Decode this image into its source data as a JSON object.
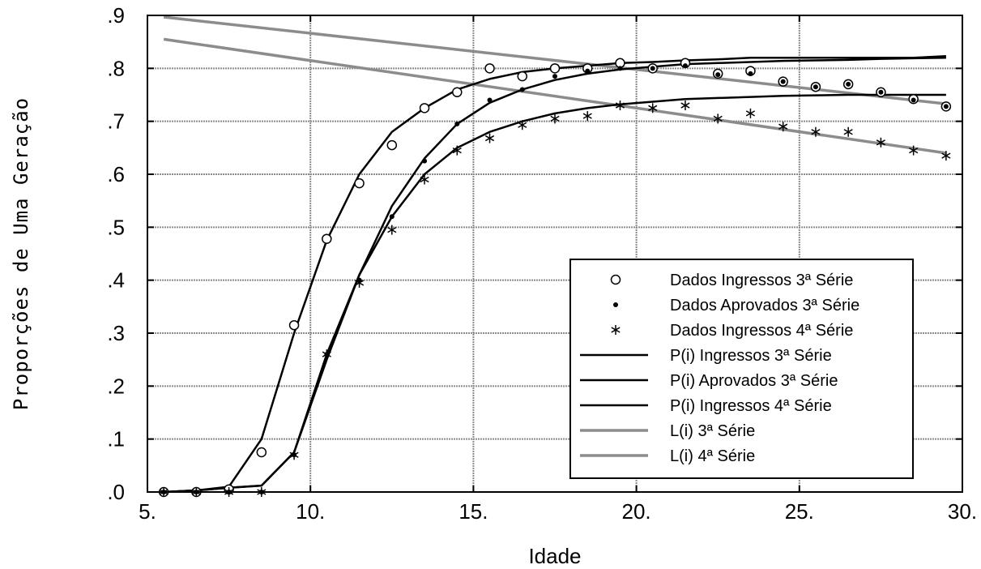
{
  "chart_data": {
    "type": "line",
    "title": "",
    "xlabel": "Idade",
    "ylabel": "Proporções de Uma Geração",
    "xlim": [
      5,
      30
    ],
    "ylim": [
      0,
      0.9
    ],
    "x_ticks": [
      5,
      10,
      15,
      20,
      25,
      30
    ],
    "x_tick_labels": [
      "5.",
      "10.",
      "15.",
      "20.",
      "25.",
      "30."
    ],
    "y_ticks": [
      0,
      0.1,
      0.2,
      0.3,
      0.4,
      0.5,
      0.6,
      0.7,
      0.8,
      0.9
    ],
    "y_tick_labels": [
      ".0",
      ".1",
      ".2",
      ".3",
      ".4",
      ".5",
      ".6",
      ".7",
      ".8",
      ".9"
    ],
    "grid": true,
    "legend_placement": "lower-right",
    "colors": {
      "data": "#000000",
      "model": "#000000",
      "trend": "#8c8c8c",
      "grid": "#8c8c8c"
    },
    "scatter_series": [
      {
        "name": "Dados Ingressos 3ª Série",
        "marker": "circle-open",
        "x": [
          5.5,
          6.5,
          7.5,
          8.5,
          9.5,
          10.5,
          11.5,
          12.5,
          13.5,
          14.5,
          15.5,
          16.5,
          17.5,
          18.5,
          19.5,
          20.5,
          21.5,
          22.5,
          23.5,
          24.5,
          25.5,
          26.5,
          27.5,
          28.5,
          29.5
        ],
        "y": [
          0.0,
          0.0,
          0.005,
          0.075,
          0.315,
          0.478,
          0.583,
          0.655,
          0.725,
          0.755,
          0.8,
          0.785,
          0.8,
          0.8,
          0.81,
          0.8,
          0.81,
          0.79,
          0.795,
          0.775,
          0.765,
          0.77,
          0.755,
          0.742,
          0.728
        ]
      },
      {
        "name": "Dados Aprovados 3ª Série",
        "marker": "dot",
        "x": [
          5.5,
          6.5,
          7.5,
          8.5,
          9.5,
          10.5,
          11.5,
          12.5,
          13.5,
          14.5,
          15.5,
          16.5,
          17.5,
          18.5,
          19.5,
          20.5,
          21.5,
          22.5,
          23.5,
          24.5,
          25.5,
          26.5,
          27.5,
          28.5,
          29.5
        ],
        "y": [
          0.0,
          0.0,
          0.0,
          0.0,
          0.07,
          0.26,
          0.4,
          0.52,
          0.625,
          0.695,
          0.74,
          0.76,
          0.785,
          0.795,
          0.8,
          0.8,
          0.805,
          0.788,
          0.79,
          0.775,
          0.765,
          0.77,
          0.755,
          0.74,
          0.728
        ]
      },
      {
        "name": "Dados Ingressos 4ª Série",
        "marker": "asterisk",
        "x": [
          5.5,
          6.5,
          7.5,
          8.5,
          9.5,
          10.5,
          11.5,
          12.5,
          13.5,
          14.5,
          15.5,
          16.5,
          17.5,
          18.5,
          19.5,
          20.5,
          21.5,
          22.5,
          23.5,
          24.5,
          25.5,
          26.5,
          27.5,
          28.5,
          29.5
        ],
        "y": [
          0.0,
          0.0,
          0.0,
          0.0,
          0.07,
          0.26,
          0.395,
          0.495,
          0.59,
          0.645,
          0.668,
          0.693,
          0.705,
          0.71,
          0.73,
          0.725,
          0.73,
          0.705,
          0.715,
          0.69,
          0.68,
          0.68,
          0.66,
          0.645,
          0.635
        ]
      }
    ],
    "line_series": [
      {
        "name": "P(i) Ingressos 3ª Série",
        "style": "solid-black",
        "x": [
          5.5,
          6.5,
          7.5,
          8.5,
          9.5,
          10.5,
          11.5,
          12.5,
          13.5,
          14.5,
          15.5,
          16.5,
          17.5,
          18.5,
          19.5,
          20.5,
          21.5,
          22.5,
          23.5,
          24.5,
          25.5,
          26.5,
          27.5,
          28.5,
          29.5
        ],
        "y": [
          0.0,
          0.003,
          0.01,
          0.1,
          0.3,
          0.475,
          0.6,
          0.68,
          0.725,
          0.76,
          0.78,
          0.793,
          0.8,
          0.805,
          0.81,
          0.812,
          0.815,
          0.817,
          0.82,
          0.82,
          0.82,
          0.82,
          0.82,
          0.82,
          0.823
        ]
      },
      {
        "name": "P(i) Aprovados 3ª Série",
        "style": "solid-black",
        "x": [
          5.5,
          6.5,
          7.5,
          8.5,
          9.5,
          10.5,
          11.5,
          12.5,
          13.5,
          14.5,
          15.5,
          16.5,
          17.5,
          18.5,
          19.5,
          20.5,
          21.5,
          22.5,
          23.5,
          24.5,
          25.5,
          26.5,
          27.5,
          28.5,
          29.5
        ],
        "y": [
          0.0,
          0.003,
          0.008,
          0.012,
          0.075,
          0.26,
          0.41,
          0.54,
          0.63,
          0.695,
          0.735,
          0.76,
          0.778,
          0.79,
          0.798,
          0.803,
          0.808,
          0.81,
          0.812,
          0.814,
          0.815,
          0.816,
          0.818,
          0.819,
          0.82
        ]
      },
      {
        "name": "P(i) Ingressos 4ª Série",
        "style": "solid-black",
        "x": [
          5.5,
          6.5,
          7.5,
          8.5,
          9.5,
          10.5,
          11.5,
          12.5,
          13.5,
          14.5,
          15.5,
          16.5,
          17.5,
          18.5,
          19.5,
          20.5,
          21.5,
          22.5,
          23.5,
          24.5,
          25.5,
          26.5,
          27.5,
          28.5,
          29.5
        ],
        "y": [
          0.0,
          0.003,
          0.008,
          0.012,
          0.075,
          0.25,
          0.41,
          0.52,
          0.6,
          0.65,
          0.68,
          0.7,
          0.715,
          0.725,
          0.732,
          0.737,
          0.742,
          0.744,
          0.746,
          0.748,
          0.749,
          0.75,
          0.75,
          0.75,
          0.75
        ]
      },
      {
        "name": "L(i) 3ª Série",
        "style": "solid-gray",
        "x": [
          5.5,
          29.5
        ],
        "y": [
          0.897,
          0.733
        ]
      },
      {
        "name": "L(i) 4ª Série",
        "style": "solid-gray",
        "x": [
          5.5,
          29.5
        ],
        "y": [
          0.855,
          0.64
        ]
      }
    ],
    "legend": [
      {
        "label": "Dados Ingressos 3ª Série",
        "symbol": "circle-open"
      },
      {
        "label": "Dados Aprovados 3ª Série",
        "symbol": "dot"
      },
      {
        "label": "Dados Ingressos 4ª Série",
        "symbol": "asterisk"
      },
      {
        "label": "P(i) Ingressos 3ª Série",
        "symbol": "line-black"
      },
      {
        "label": "P(i) Aprovados 3ª Série",
        "symbol": "line-black"
      },
      {
        "label": "P(i) Ingressos 4ª Série",
        "symbol": "line-black"
      },
      {
        "label": "L(i) 3ª Série",
        "symbol": "line-gray"
      },
      {
        "label": "L(i) 4ª Série",
        "symbol": "line-gray"
      }
    ]
  }
}
